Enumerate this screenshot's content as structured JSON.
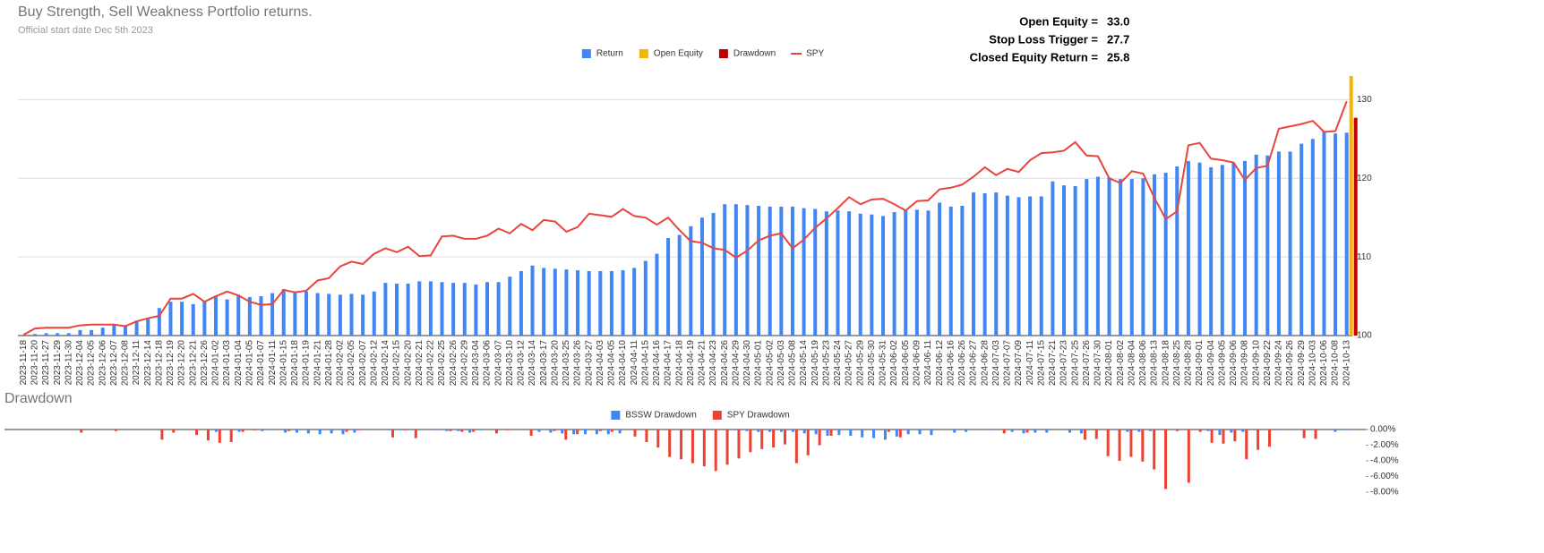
{
  "header": {
    "title": "Buy Strength, Sell Weakness Portfolio returns.",
    "subtitle": "Official start date Dec 5th 2023",
    "annotations": [
      {
        "label": "Open Equity =",
        "value": "33.0"
      },
      {
        "label": "Stop Loss Trigger =",
        "value": "27.7"
      },
      {
        "label": "Closed Equity Return =",
        "value": "25.8"
      }
    ]
  },
  "chart_data": [
    {
      "type": "combo",
      "categories": [
        "2023-11-18",
        "2023-11-20",
        "2023-11-27",
        "2023-11-29",
        "2023-11-30",
        "2023-12-04",
        "2023-12-05",
        "2023-12-06",
        "2023-12-07",
        "2023-12-08",
        "2023-12-11",
        "2023-12-14",
        "2023-12-18",
        "2023-12-19",
        "2023-12-20",
        "2023-12-21",
        "2023-12-26",
        "2024-01-02",
        "2024-01-03",
        "2024-01-04",
        "2024-01-05",
        "2024-01-07",
        "2024-01-11",
        "2024-01-15",
        "2024-01-18",
        "2024-01-19",
        "2024-01-21",
        "2024-01-28",
        "2024-02-02",
        "2024-02-05",
        "2024-02-07",
        "2024-02-12",
        "2024-02-14",
        "2024-02-15",
        "2024-02-20",
        "2024-02-21",
        "2024-02-22",
        "2024-02-25",
        "2024-02-26",
        "2024-02-29",
        "2024-03-04",
        "2024-03-06",
        "2024-03-07",
        "2024-03-10",
        "2024-03-12",
        "2024-03-14",
        "2024-03-17",
        "2024-03-20",
        "2024-03-25",
        "2024-03-26",
        "2024-03-27",
        "2024-04-03",
        "2024-04-05",
        "2024-04-10",
        "2024-04-11",
        "2024-04-15",
        "2024-04-16",
        "2024-04-17",
        "2024-04-18",
        "2024-04-19",
        "2024-04-21",
        "2024-04-23",
        "2024-04-26",
        "2024-04-29",
        "2024-04-30",
        "2024-05-01",
        "2024-05-02",
        "2024-05-03",
        "2024-05-08",
        "2024-05-14",
        "2024-05-19",
        "2024-05-23",
        "2024-05-24",
        "2024-05-27",
        "2024-05-29",
        "2024-05-30",
        "2024-05-31",
        "2024-06-02",
        "2024-06-05",
        "2024-06-09",
        "2024-06-11",
        "2024-06-12",
        "2024-06-16",
        "2024-06-26",
        "2024-06-27",
        "2024-06-28",
        "2024-07-03",
        "2024-07-07",
        "2024-07-09",
        "2024-07-11",
        "2024-07-15",
        "2024-07-21",
        "2024-07-23",
        "2024-07-25",
        "2024-07-26",
        "2024-07-30",
        "2024-08-01",
        "2024-08-02",
        "2024-08-04",
        "2024-08-06",
        "2024-08-13",
        "2024-08-18",
        "2024-08-25",
        "2024-08-28",
        "2024-09-01",
        "2024-09-04",
        "2024-09-05",
        "2024-09-06",
        "2024-09-08",
        "2024-09-10",
        "2024-09-22",
        "2024-09-24",
        "2024-09-26",
        "2024-09-29",
        "2024-10-03",
        "2024-10-06",
        "2024-10-08",
        "2024-10-13"
      ],
      "series": [
        {
          "name": "Return",
          "color": "#4285f4",
          "kind": "bar",
          "values": [
            100,
            100.2,
            100.3,
            100.3,
            100.3,
            100.7,
            100.7,
            101.0,
            101.3,
            101.2,
            101.9,
            102.2,
            103.5,
            104.3,
            104.3,
            104.0,
            104.4,
            105.0,
            104.6,
            105.2,
            104.9,
            105.0,
            105.4,
            105.9,
            105.5,
            105.6,
            105.4,
            105.3,
            105.2,
            105.3,
            105.2,
            105.6,
            106.7,
            106.6,
            106.6,
            106.9,
            106.9,
            106.8,
            106.7,
            106.7,
            106.5,
            106.8,
            106.8,
            107.5,
            108.2,
            108.9,
            108.6,
            108.5,
            108.4,
            108.3,
            108.2,
            108.2,
            108.2,
            108.3,
            108.6,
            109.5,
            110.4,
            112.4,
            112.8,
            113.9,
            115.0,
            115.6,
            116.7,
            116.7,
            116.6,
            116.5,
            116.4,
            116.4,
            116.4,
            116.2,
            116.1,
            115.8,
            115.9,
            115.8,
            115.5,
            115.4,
            115.2,
            115.7,
            116.0,
            116.0,
            115.9,
            116.9,
            116.4,
            116.5,
            118.2,
            118.1,
            118.2,
            117.8,
            117.6,
            117.7,
            117.7,
            119.6,
            119.1,
            119.0,
            119.9,
            120.2,
            120.1,
            119.9,
            119.9,
            120.0,
            120.5,
            120.7,
            121.5,
            122.2,
            122.0,
            121.4,
            121.7,
            121.9,
            122.2,
            123.0,
            122.9,
            123.4,
            123.4,
            124.4,
            125.0,
            126.0,
            125.7,
            125.8
          ]
        },
        {
          "name": "Open Equity",
          "color": "#f4b400",
          "kind": "bar",
          "values": [
            null,
            null,
            null,
            null,
            null,
            null,
            null,
            null,
            null,
            null,
            null,
            null,
            null,
            null,
            null,
            null,
            null,
            null,
            null,
            null,
            null,
            null,
            null,
            null,
            null,
            null,
            null,
            null,
            null,
            null,
            null,
            null,
            null,
            null,
            null,
            null,
            null,
            null,
            null,
            null,
            null,
            null,
            null,
            null,
            null,
            null,
            null,
            null,
            null,
            null,
            null,
            null,
            null,
            null,
            null,
            null,
            null,
            null,
            null,
            null,
            null,
            null,
            null,
            null,
            null,
            null,
            null,
            null,
            null,
            null,
            null,
            null,
            null,
            null,
            null,
            null,
            null,
            null,
            null,
            null,
            null,
            null,
            null,
            null,
            null,
            null,
            null,
            null,
            null,
            null,
            null,
            null,
            null,
            null,
            null,
            null,
            null,
            null,
            null,
            null,
            null,
            null,
            null,
            null,
            null,
            null,
            null,
            null,
            null,
            null,
            null,
            null,
            null,
            null,
            null,
            null,
            null,
            133.0
          ]
        },
        {
          "name": "Drawdown",
          "color": "#c00000",
          "kind": "bar",
          "values": [
            null,
            null,
            null,
            null,
            null,
            null,
            null,
            null,
            null,
            null,
            null,
            null,
            null,
            null,
            null,
            null,
            null,
            null,
            null,
            null,
            null,
            null,
            null,
            null,
            null,
            null,
            null,
            null,
            null,
            null,
            null,
            null,
            null,
            null,
            null,
            null,
            null,
            null,
            null,
            null,
            null,
            null,
            null,
            null,
            null,
            null,
            null,
            null,
            null,
            null,
            null,
            null,
            null,
            null,
            null,
            null,
            null,
            null,
            null,
            null,
            null,
            null,
            null,
            null,
            null,
            null,
            null,
            null,
            null,
            null,
            null,
            null,
            null,
            null,
            null,
            null,
            null,
            null,
            null,
            null,
            null,
            null,
            null,
            null,
            null,
            null,
            null,
            null,
            null,
            null,
            null,
            null,
            null,
            null,
            null,
            null,
            null,
            null,
            null,
            null,
            null,
            null,
            null,
            null,
            null,
            null,
            null,
            null,
            null,
            null,
            null,
            null,
            null,
            null,
            null,
            null,
            null,
            127.7
          ]
        },
        {
          "name": "SPY",
          "color": "#e8453c",
          "kind": "line",
          "values": [
            100.1,
            100.9,
            101.0,
            101.0,
            101.0,
            101.3,
            101.4,
            101.4,
            101.4,
            101.2,
            101.8,
            102.2,
            102.5,
            104.7,
            104.7,
            105.3,
            104.3,
            105.0,
            105.6,
            105.1,
            104.3,
            103.9,
            104.0,
            105.8,
            105.5,
            105.7,
            107.0,
            107.3,
            108.8,
            109.4,
            109.1,
            110.4,
            111.1,
            110.6,
            111.3,
            110.1,
            110.2,
            112.6,
            112.7,
            112.3,
            112.3,
            112.7,
            113.6,
            113.0,
            114.2,
            113.4,
            114.7,
            114.5,
            113.2,
            113.8,
            115.5,
            115.3,
            115.1,
            116.1,
            115.2,
            115.0,
            114.1,
            115.0,
            113.4,
            112.0,
            111.8,
            111.1,
            110.9,
            109.9,
            110.8,
            112.1,
            112.7,
            113.0,
            111.1,
            112.2,
            113.7,
            114.9,
            116.2,
            117.6,
            116.7,
            117.3,
            117.4,
            116.7,
            115.9,
            117.1,
            117.2,
            118.6,
            118.8,
            119.2,
            120.2,
            121.4,
            120.4,
            121.2,
            120.8,
            122.3,
            123.2,
            123.3,
            123.5,
            124.6,
            122.9,
            122.8,
            120.0,
            119.4,
            120.9,
            120.6,
            117.5,
            114.8,
            115.8,
            124.2,
            124.5,
            122.5,
            122.3,
            122.0,
            119.8,
            121.3,
            121.6,
            126.3,
            126.6,
            126.9,
            127.3,
            125.9,
            126.0,
            129.8
          ]
        }
      ],
      "ylim": [
        100,
        133
      ],
      "yticks": [
        100,
        110,
        120,
        130
      ],
      "grid": true
    },
    {
      "type": "bar",
      "title": "Drawdown",
      "series": [
        {
          "name": "BSSW Drawdown",
          "color": "#4285f4",
          "values": [
            0,
            0,
            0,
            0,
            0,
            0,
            0,
            0,
            0,
            0,
            0,
            0,
            0,
            0,
            0,
            0,
            0,
            0,
            -0.3,
            0,
            -0.3,
            0,
            -0.2,
            0,
            -0.4,
            -0.4,
            -0.5,
            -0.6,
            -0.5,
            -0.6,
            -0.4,
            0,
            0,
            -0.1,
            -0.1,
            0,
            0,
            -0.1,
            -0.2,
            -0.2,
            -0.4,
            -0.1,
            0,
            0,
            0,
            0,
            -0.3,
            -0.4,
            -0.5,
            -0.6,
            -0.6,
            -0.6,
            -0.6,
            -0.5,
            0,
            0,
            0,
            0,
            0,
            0,
            0,
            0,
            0,
            -0.1,
            -0.2,
            -0.3,
            -0.3,
            -0.3,
            -0.3,
            -0.5,
            -0.6,
            -0.8,
            -0.7,
            -0.8,
            -1.0,
            -1.1,
            -1.3,
            -0.9,
            -0.6,
            -0.6,
            -0.7,
            0,
            -0.4,
            -0.3,
            0,
            -0.1,
            0,
            -0.3,
            -0.5,
            -0.4,
            -0.4,
            0,
            -0.4,
            -0.5,
            0,
            0,
            -0.1,
            -0.3,
            -0.3,
            -0.2,
            0,
            0,
            0,
            0,
            -0.2,
            -0.7,
            -0.4,
            -0.3,
            0,
            0,
            -0.1,
            0,
            0,
            0,
            0,
            -0.3,
            -0.1,
            0
          ]
        },
        {
          "name": "SPY Drawdown",
          "color": "#ea4335",
          "values": [
            0,
            0,
            0,
            0,
            0,
            0,
            -0.4,
            0,
            0,
            -0.2,
            0,
            0,
            0,
            -1.3,
            -0.4,
            0,
            -0.7,
            -1.4,
            -1.7,
            -1.6,
            -0.3,
            -0.1,
            0,
            0,
            -0.2,
            0,
            0,
            0,
            0,
            -0.3,
            -0.1,
            0,
            0,
            -1.0,
            -0.1,
            -1.1,
            0,
            0,
            -0.2,
            -0.3,
            -0.3,
            0,
            -0.5,
            -0.1,
            0,
            -0.8,
            0,
            -0.2,
            -1.3,
            -0.6,
            0,
            -0.2,
            -0.3,
            0,
            -0.9,
            -1.6,
            -2.3,
            -3.5,
            -3.8,
            -4.3,
            -4.7,
            -5.3,
            -4.5,
            -3.7,
            -2.9,
            -2.5,
            -2.3,
            -1.9,
            -4.3,
            -3.3,
            -2.0,
            -0.8,
            0,
            0,
            0,
            0,
            -0.3,
            -1.0,
            0,
            0,
            0,
            0,
            0,
            0,
            0,
            0,
            -0.5,
            0,
            -0.4,
            0,
            0,
            0,
            0,
            -1.3,
            -1.2,
            -3.4,
            -4.0,
            -3.5,
            -4.1,
            -5.1,
            -7.6,
            -0.2,
            -6.8,
            -0.3,
            -1.7,
            -1.8,
            -1.5,
            -3.8,
            -2.6,
            -2.2,
            0,
            0,
            -1.1,
            -1.2,
            0,
            0,
            0,
            0
          ]
        }
      ],
      "ylim": [
        -8.6,
        0.4
      ],
      "yticks": [
        {
          "value": 0,
          "label": "0.00%"
        },
        {
          "value": -2,
          "label": "-2.00%"
        },
        {
          "value": -4,
          "label": "-4.00%"
        },
        {
          "value": -6,
          "label": "-6.00%"
        },
        {
          "value": -8,
          "label": "-8.00%"
        }
      ],
      "grid": false
    }
  ]
}
